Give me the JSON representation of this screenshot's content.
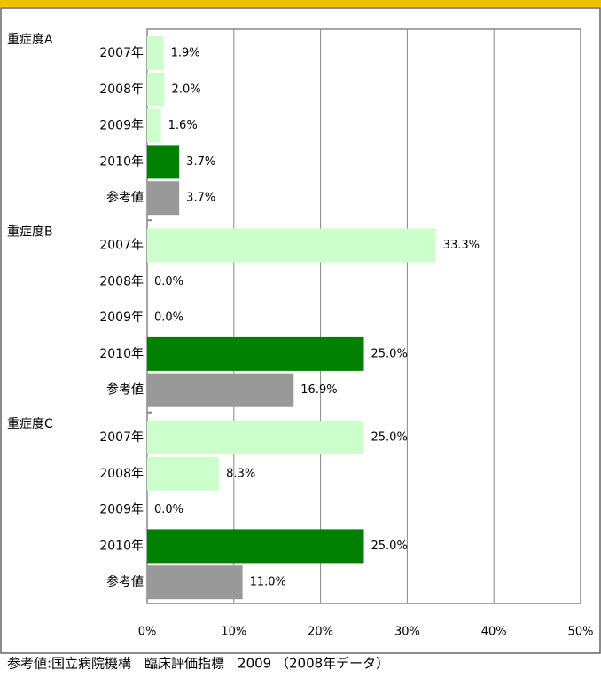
{
  "chart_data": {
    "type": "bar",
    "categories": [
      "2007年",
      "2008年",
      "2009年",
      "2010年",
      "参考値"
    ],
    "colors": [
      "#ccffcc",
      "#ccffcc",
      "#ccffcc",
      "#008000",
      "#999999"
    ],
    "groups": [
      {
        "name": "重症度A",
        "values": [
          1.9,
          2.0,
          1.6,
          3.7,
          3.7
        ],
        "value_labels": [
          "1.9%",
          "2.0%",
          "1.6%",
          "3.7%",
          "3.7%"
        ]
      },
      {
        "name": "重症度B",
        "values": [
          33.3,
          0.0,
          0.0,
          25.0,
          16.9
        ],
        "value_labels": [
          "33.3%",
          "0.0%",
          "0.0%",
          "25.0%",
          "16.9%"
        ]
      },
      {
        "name": "重症度C",
        "values": [
          25.0,
          8.3,
          0.0,
          25.0,
          11.0
        ],
        "value_labels": [
          "25.0%",
          "8.3%",
          "0.0%",
          "25.0%",
          "11.0%"
        ]
      }
    ],
    "xlim": [
      0,
      50
    ],
    "xticks": [
      {
        "value": 0,
        "label": "0%"
      },
      {
        "value": 10,
        "label": "10%"
      },
      {
        "value": 20,
        "label": "20%"
      },
      {
        "value": 30,
        "label": "30%"
      },
      {
        "value": 40,
        "label": "40%"
      },
      {
        "value": 50,
        "label": "50%"
      }
    ],
    "grid": true,
    "note": "参考値:国立病院機構　臨床評価指標　2009 （2008年データ）"
  }
}
